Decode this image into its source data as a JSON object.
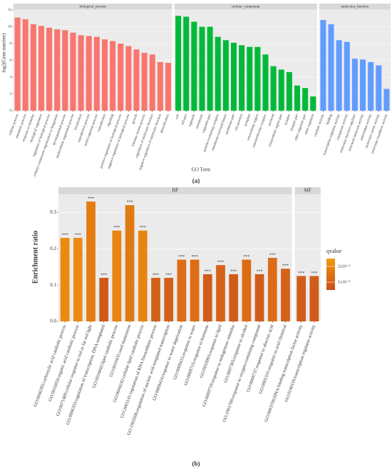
{
  "chart_data": [
    {
      "type": "bar",
      "ylabel": "log2(Gene number)",
      "xlabel": "GO Term",
      "panel_label": "(a)",
      "ylim": [
        0,
        12
      ],
      "yticks": [
        0,
        2,
        4,
        6,
        8,
        10,
        12
      ],
      "grid": true,
      "facets": [
        {
          "name": "biological_process",
          "color": "#f8766d",
          "categories": [
            "cellular process",
            "metabolic process",
            "response to stimulus",
            "biological regulation",
            "regulation of biological process",
            "cellular component organization or biogenesis",
            "developmental process",
            "multicellular organismal process",
            "localization",
            "reproductive process",
            "multi-organism process",
            "reproduction",
            "signaling",
            "positive regulation of biological process",
            "negative regulation of biological process",
            "growth",
            "immune system process",
            "regulation of molecular function",
            "negative regulation of molecular function",
            "detoxification"
          ],
          "values": [
            11.1,
            10.9,
            10.3,
            10.1,
            9.9,
            9.7,
            9.6,
            9.3,
            9.0,
            8.9,
            8.8,
            8.5,
            8.3,
            8.0,
            7.7,
            7.3,
            6.9,
            6.7,
            5.8,
            5.7
          ]
        },
        {
          "name": "cellular_component",
          "color": "#00ba38",
          "categories": [
            "cell",
            "cell part",
            "organelle",
            "membrane",
            "organelle part",
            "protein-containing complex",
            "membrane-enclosed lumen",
            "membrane part",
            "cell junction",
            "symplast",
            "extracellular region",
            "supramolecular complex",
            "nucleoid",
            "extracellular region part",
            "synapse",
            "synapse part",
            "other organism part",
            "other organism"
          ],
          "values": [
            11.3,
            11.2,
            10.6,
            10.0,
            10.0,
            8.8,
            8.4,
            8.1,
            7.8,
            7.6,
            7.6,
            6.7,
            5.3,
            4.9,
            4.6,
            3.0,
            2.7,
            1.7
          ]
        },
        {
          "name": "molecular_function",
          "color": "#619cff",
          "categories": [
            "catalytic activity",
            "binding",
            "transcription regulator activity",
            "transporter activity",
            "molecular function regulator",
            "structural molecule activity",
            "antioxidant activity",
            "molecular carrier activity",
            "molecular transducer activity"
          ],
          "values": [
            10.8,
            10.3,
            8.4,
            8.2,
            6.2,
            6.1,
            5.8,
            5.4,
            2.6
          ]
        }
      ]
    },
    {
      "type": "bar",
      "ylabel": "Enrichment ratio",
      "panel_label": "(b)",
      "ylim": [
        0,
        0.35
      ],
      "yticks": [
        {
          "value": 0,
          "label": "0.0"
        },
        0.1,
        0.2,
        0.3
      ],
      "grid": true,
      "legend": {
        "title": "qvalue",
        "colors": [
          "#f29a0e",
          "#c8501a"
        ],
        "range": [
          5e-05,
          0.00025
        ],
        "ticks": [
          {
            "value": 0.0002,
            "label": "2x10⁻⁴"
          },
          {
            "value": 0.0001,
            "label": "1x10⁻⁴"
          }
        ]
      },
      "facets": [
        {
          "name": "BP",
          "categories": [
            "GO:0046395:carboxylic acid catabolic process",
            "GO:0016054:organic acid catabolic process",
            "GO:0071489:cellular response to red or far red light",
            "GO:0006355:regulation of transcription, DNA-templated",
            "GO:0016042:lipid catabolic process",
            "GO:0010431:seed maturation",
            "GO:0044242:cellular lipid catabolic process",
            "GO:2001141:regulation of RNA biosynthetic process",
            "GO:1903506:regulation of nucleic acid-templated transcription",
            "GO:0009414:response to water deprivation",
            "GO:0009415:response to water",
            "GO:0009725:response to hormone",
            "GO:0033993:response to lipid",
            "GO:0009719:response to endogenous stimulus",
            "GO:0097305:response to alcohol",
            "GO:1901700:response to oxygen-containing compound",
            "GO:0009737:response to abscisic acid",
            "GO:0001101:response to acid chemical"
          ],
          "values": [
            0.23,
            0.23,
            0.33,
            0.12,
            0.25,
            0.32,
            0.25,
            0.12,
            0.12,
            0.17,
            0.17,
            0.13,
            0.155,
            0.13,
            0.17,
            0.13,
            0.175,
            0.145
          ],
          "labels": [
            "***",
            "***",
            "***",
            "***",
            "***",
            "***",
            "***",
            "***",
            "***",
            "***",
            "***",
            "***",
            "***",
            "***",
            "***",
            "***",
            "***",
            "***"
          ],
          "colors": [
            "#ec8a10",
            "#ec8a10",
            "#e47c12",
            "#cf5a18",
            "#e88412",
            "#e07a14",
            "#e88412",
            "#d2601a",
            "#d2601a",
            "#dc6c16",
            "#dc6c16",
            "#d05c1a",
            "#d66418",
            "#d05c1a",
            "#dc6c16",
            "#d05c1a",
            "#dc6c16",
            "#d4621a"
          ]
        },
        {
          "name": "MF",
          "categories": [
            "GO:0003700:DNA-binding transcription factor activity",
            "GO:0140110:transcription regulator activity"
          ],
          "values": [
            0.125,
            0.125
          ],
          "labels": [
            "***",
            "***"
          ],
          "colors": [
            "#d05c1a",
            "#d05c1a"
          ]
        }
      ]
    }
  ]
}
